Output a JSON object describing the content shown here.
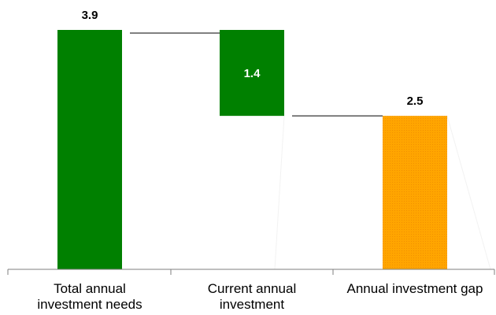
{
  "chart_data": {
    "type": "bar",
    "subtype": "waterfall",
    "categories": [
      [
        "Total annual",
        "investment needs"
      ],
      [
        "Current annual",
        "investment"
      ],
      [
        "Annual investment gap"
      ]
    ],
    "values": [
      3.9,
      1.4,
      2.5
    ],
    "value_labels": [
      "3.9",
      "1.4",
      "2.5"
    ],
    "colors": [
      "#008000",
      "#008000",
      "#FFA500"
    ],
    "ylim": [
      0,
      3.9
    ],
    "grid": false,
    "legend": "none"
  }
}
